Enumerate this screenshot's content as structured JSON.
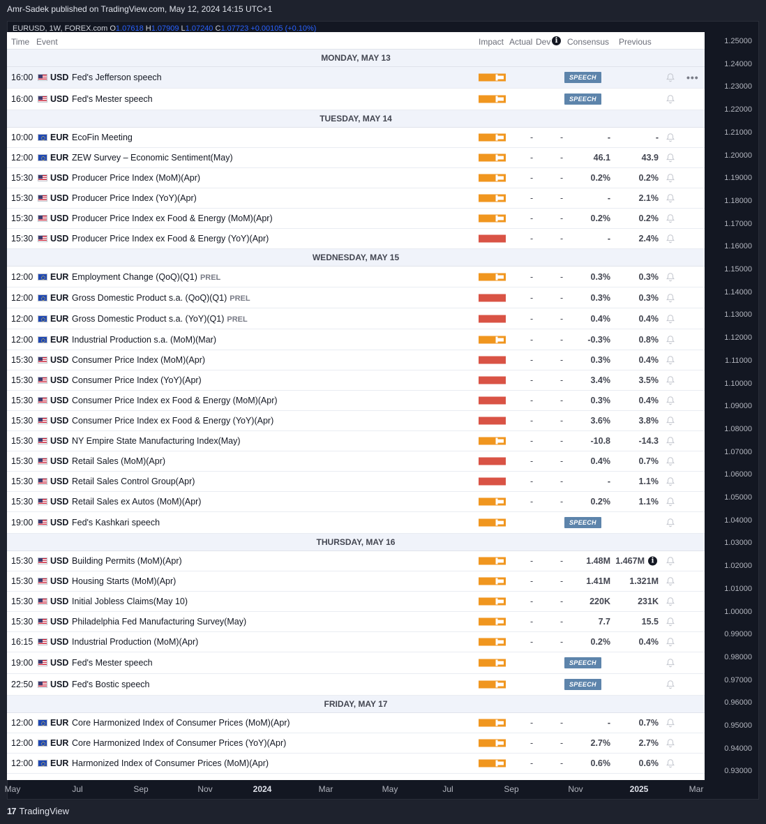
{
  "header": {
    "published": "Amr-Sadek published on TradingView.com, May 12, 2024 14:15 UTC+1"
  },
  "ohlc": {
    "symbol": "EURUSD, 1W, FOREX.com",
    "o_label": "O",
    "o": "1.07618",
    "h_label": "H",
    "h": "1.07909",
    "l_label": "L",
    "l": "1.07240",
    "c_label": "C",
    "c": "1.07723",
    "change": "+0.00105 (+0.10%)"
  },
  "calendar": {
    "columns": {
      "time": "Time",
      "event": "Event",
      "impact": "Impact",
      "actual": "Actual",
      "dev": "Dev",
      "consensus": "Consensus",
      "previous": "Previous"
    },
    "days": [
      {
        "label": "MONDAY, MAY 13",
        "events": [
          {
            "time": "16:00",
            "cur": "USD",
            "title": "Fed's Jefferson speech",
            "impact": "med",
            "badge": "SPEECH",
            "highlight": true
          },
          {
            "time": "16:00",
            "cur": "USD",
            "title": "Fed's Mester speech",
            "impact": "med",
            "badge": "SPEECH"
          }
        ]
      },
      {
        "label": "TUESDAY, MAY 14",
        "events": [
          {
            "time": "10:00",
            "cur": "EUR",
            "title": "EcoFin Meeting",
            "impact": "med",
            "actual": "-",
            "dev": "-",
            "cons": "-",
            "prev": "-"
          },
          {
            "time": "12:00",
            "cur": "EUR",
            "title": "ZEW Survey – Economic Sentiment(May)",
            "impact": "med",
            "actual": "-",
            "dev": "-",
            "cons": "46.1",
            "prev": "43.9"
          },
          {
            "time": "15:30",
            "cur": "USD",
            "title": "Producer Price Index (MoM)(Apr)",
            "impact": "med",
            "actual": "-",
            "dev": "-",
            "cons": "0.2%",
            "prev": "0.2%"
          },
          {
            "time": "15:30",
            "cur": "USD",
            "title": "Producer Price Index (YoY)(Apr)",
            "impact": "med",
            "actual": "-",
            "dev": "-",
            "cons": "-",
            "prev": "2.1%"
          },
          {
            "time": "15:30",
            "cur": "USD",
            "title": "Producer Price Index ex Food & Energy (MoM)(Apr)",
            "impact": "med",
            "actual": "-",
            "dev": "-",
            "cons": "0.2%",
            "prev": "0.2%"
          },
          {
            "time": "15:30",
            "cur": "USD",
            "title": "Producer Price Index ex Food & Energy (YoY)(Apr)",
            "impact": "high",
            "actual": "-",
            "dev": "-",
            "cons": "-",
            "prev": "2.4%"
          }
        ]
      },
      {
        "label": "WEDNESDAY, MAY 15",
        "events": [
          {
            "time": "12:00",
            "cur": "EUR",
            "title": "Employment Change (QoQ)(Q1)",
            "tag": "PREL",
            "impact": "med",
            "actual": "-",
            "dev": "-",
            "cons": "0.3%",
            "prev": "0.3%"
          },
          {
            "time": "12:00",
            "cur": "EUR",
            "title": "Gross Domestic Product s.a. (QoQ)(Q1)",
            "tag": "PREL",
            "impact": "high",
            "actual": "-",
            "dev": "-",
            "cons": "0.3%",
            "prev": "0.3%"
          },
          {
            "time": "12:00",
            "cur": "EUR",
            "title": "Gross Domestic Product s.a. (YoY)(Q1)",
            "tag": "PREL",
            "impact": "high",
            "actual": "-",
            "dev": "-",
            "cons": "0.4%",
            "prev": "0.4%"
          },
          {
            "time": "12:00",
            "cur": "EUR",
            "title": "Industrial Production s.a. (MoM)(Mar)",
            "impact": "med",
            "actual": "-",
            "dev": "-",
            "cons": "-0.3%",
            "prev": "0.8%"
          },
          {
            "time": "15:30",
            "cur": "USD",
            "title": "Consumer Price Index (MoM)(Apr)",
            "impact": "high",
            "actual": "-",
            "dev": "-",
            "cons": "0.3%",
            "prev": "0.4%"
          },
          {
            "time": "15:30",
            "cur": "USD",
            "title": "Consumer Price Index (YoY)(Apr)",
            "impact": "high",
            "actual": "-",
            "dev": "-",
            "cons": "3.4%",
            "prev": "3.5%"
          },
          {
            "time": "15:30",
            "cur": "USD",
            "title": "Consumer Price Index ex Food & Energy (MoM)(Apr)",
            "impact": "high",
            "actual": "-",
            "dev": "-",
            "cons": "0.3%",
            "prev": "0.4%"
          },
          {
            "time": "15:30",
            "cur": "USD",
            "title": "Consumer Price Index ex Food & Energy (YoY)(Apr)",
            "impact": "high",
            "actual": "-",
            "dev": "-",
            "cons": "3.6%",
            "prev": "3.8%"
          },
          {
            "time": "15:30",
            "cur": "USD",
            "title": "NY Empire State Manufacturing Index(May)",
            "impact": "med",
            "actual": "-",
            "dev": "-",
            "cons": "-10.8",
            "prev": "-14.3"
          },
          {
            "time": "15:30",
            "cur": "USD",
            "title": "Retail Sales (MoM)(Apr)",
            "impact": "high",
            "actual": "-",
            "dev": "-",
            "cons": "0.4%",
            "prev": "0.7%"
          },
          {
            "time": "15:30",
            "cur": "USD",
            "title": "Retail Sales Control Group(Apr)",
            "impact": "high",
            "actual": "-",
            "dev": "-",
            "cons": "-",
            "prev": "1.1%"
          },
          {
            "time": "15:30",
            "cur": "USD",
            "title": "Retail Sales ex Autos (MoM)(Apr)",
            "impact": "med",
            "actual": "-",
            "dev": "-",
            "cons": "0.2%",
            "prev": "1.1%"
          },
          {
            "time": "19:00",
            "cur": "USD",
            "title": "Fed's Kashkari speech",
            "impact": "med",
            "badge": "SPEECH"
          }
        ]
      },
      {
        "label": "THURSDAY, MAY 16",
        "events": [
          {
            "time": "15:30",
            "cur": "USD",
            "title": "Building Permits (MoM)(Apr)",
            "impact": "med",
            "actual": "-",
            "dev": "-",
            "cons": "1.48M",
            "prev": "1.467M",
            "info": "i"
          },
          {
            "time": "15:30",
            "cur": "USD",
            "title": "Housing Starts (MoM)(Apr)",
            "impact": "med",
            "actual": "-",
            "dev": "-",
            "cons": "1.41M",
            "prev": "1.321M"
          },
          {
            "time": "15:30",
            "cur": "USD",
            "title": "Initial Jobless Claims(May 10)",
            "impact": "med",
            "actual": "-",
            "dev": "-",
            "cons": "220K",
            "prev": "231K"
          },
          {
            "time": "15:30",
            "cur": "USD",
            "title": "Philadelphia Fed Manufacturing Survey(May)",
            "impact": "med",
            "actual": "-",
            "dev": "-",
            "cons": "7.7",
            "prev": "15.5"
          },
          {
            "time": "16:15",
            "cur": "USD",
            "title": "Industrial Production (MoM)(Apr)",
            "impact": "med",
            "actual": "-",
            "dev": "-",
            "cons": "0.2%",
            "prev": "0.4%"
          },
          {
            "time": "19:00",
            "cur": "USD",
            "title": "Fed's Mester speech",
            "impact": "med",
            "badge": "SPEECH"
          },
          {
            "time": "22:50",
            "cur": "USD",
            "title": "Fed's Bostic speech",
            "impact": "med",
            "badge": "SPEECH"
          }
        ]
      },
      {
        "label": "FRIDAY, MAY 17",
        "events": [
          {
            "time": "12:00",
            "cur": "EUR",
            "title": "Core Harmonized Index of Consumer Prices (MoM)(Apr)",
            "impact": "med",
            "actual": "-",
            "dev": "-",
            "cons": "-",
            "prev": "0.7%"
          },
          {
            "time": "12:00",
            "cur": "EUR",
            "title": "Core Harmonized Index of Consumer Prices (YoY)(Apr)",
            "impact": "med",
            "actual": "-",
            "dev": "-",
            "cons": "2.7%",
            "prev": "2.7%"
          },
          {
            "time": "12:00",
            "cur": "EUR",
            "title": "Harmonized Index of Consumer Prices (MoM)(Apr)",
            "impact": "med",
            "actual": "-",
            "dev": "-",
            "cons": "0.6%",
            "prev": "0.6%"
          }
        ]
      }
    ],
    "more_label": "•••",
    "info_glyph": "i"
  },
  "price_axis": [
    "1.25000",
    "1.24000",
    "1.23000",
    "1.22000",
    "1.21000",
    "1.20000",
    "1.19000",
    "1.18000",
    "1.17000",
    "1.16000",
    "1.15000",
    "1.14000",
    "1.13000",
    "1.12000",
    "1.11000",
    "1.10000",
    "1.09000",
    "1.08000",
    "1.07000",
    "1.06000",
    "1.05000",
    "1.04000",
    "1.03000",
    "1.02000",
    "1.01000",
    "1.00000",
    "0.99000",
    "0.98000",
    "0.97000",
    "0.96000",
    "0.95000",
    "0.94000",
    "0.93000"
  ],
  "time_axis": [
    {
      "label": "May",
      "strong": false
    },
    {
      "label": "Jul",
      "strong": false
    },
    {
      "label": "Sep",
      "strong": false
    },
    {
      "label": "Nov",
      "strong": false
    },
    {
      "label": "2024",
      "strong": true
    },
    {
      "label": "Mar",
      "strong": false
    },
    {
      "label": "May",
      "strong": false
    },
    {
      "label": "Jul",
      "strong": false
    },
    {
      "label": "Sep",
      "strong": false
    },
    {
      "label": "Nov",
      "strong": false
    },
    {
      "label": "2025",
      "strong": true
    },
    {
      "label": "Mar",
      "strong": false
    }
  ],
  "footer": {
    "logo": "17",
    "brand": "TradingView"
  },
  "colors": {
    "impact_med": "#f0961f",
    "impact_high": "#d95345",
    "badge": "#5d84ab",
    "ohlc_value": "#2962ff"
  }
}
